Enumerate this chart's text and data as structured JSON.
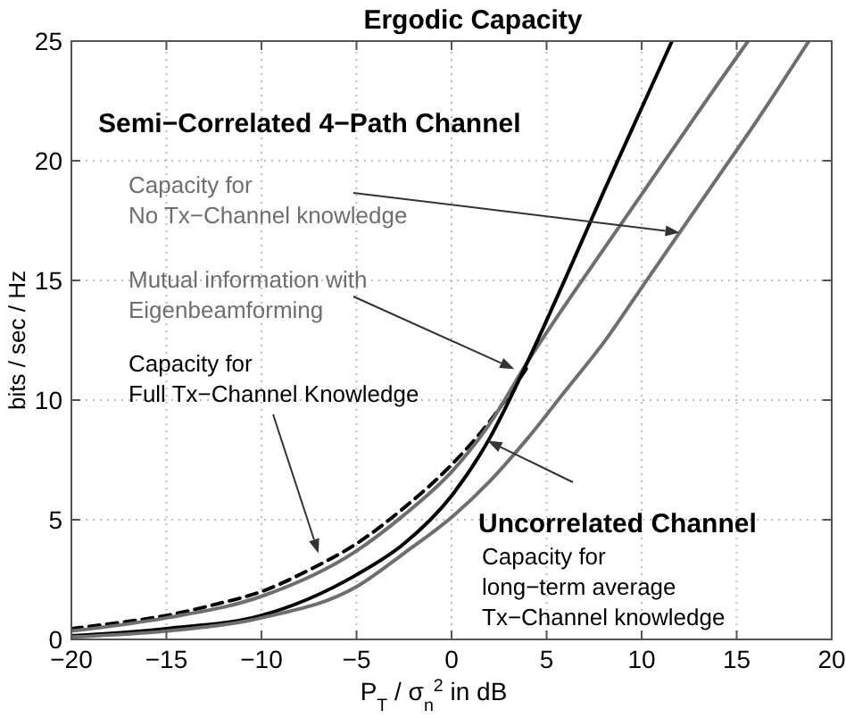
{
  "chart_data": {
    "type": "line",
    "title": "Ergodic Capacity",
    "xlabel": "P$_{T}$ / σ$_{n}$$^{2}$ in dB",
    "ylabel": "bits / sec / Hz",
    "xlim": [
      -20,
      20
    ],
    "ylim": [
      0,
      25
    ],
    "xticks": [
      -20,
      -15,
      -10,
      -5,
      0,
      5,
      10,
      15,
      20
    ],
    "yticks": [
      0,
      5,
      10,
      15,
      20,
      25
    ],
    "grid": true,
    "marker": "none",
    "series": [
      {
        "color": "#000000",
        "line_style": "dashed",
        "x": [
          -20,
          -17.5,
          -15,
          -12.5,
          -10,
          -7.5,
          -5,
          -2.5,
          0,
          2,
          4
        ],
        "values": [
          0.45,
          0.7,
          1.0,
          1.45,
          2.0,
          2.9,
          4.0,
          5.5,
          7.3,
          9.1,
          11.4
        ]
      },
      {
        "color": "#6e6e6e",
        "x": [
          -20,
          -15,
          -10,
          -5,
          -2.5,
          0,
          2,
          4,
          6,
          8,
          10,
          12,
          14,
          15.6
        ],
        "values": [
          0.35,
          0.9,
          1.8,
          3.7,
          5.2,
          7.0,
          9.0,
          11.6,
          14.0,
          16.3,
          18.6,
          20.9,
          23.2,
          25
        ]
      },
      {
        "color": "#000000",
        "x": [
          -20,
          -15,
          -10,
          -5,
          -2.5,
          0,
          2,
          4,
          6,
          8,
          10,
          11.6
        ],
        "values": [
          0.15,
          0.45,
          1.0,
          2.7,
          4.0,
          6.0,
          8.4,
          11.6,
          15.1,
          18.7,
          22.2,
          25
        ]
      },
      {
        "color": "#6e6e6e",
        "x": [
          -20,
          -15,
          -10,
          -5,
          -2.5,
          0,
          2,
          4,
          6,
          8,
          10,
          12,
          14,
          16,
          18.8
        ],
        "values": [
          0.1,
          0.35,
          0.9,
          2.2,
          3.6,
          5.1,
          6.6,
          8.4,
          10.4,
          12.4,
          14.7,
          17.0,
          19.3,
          21.6,
          25
        ]
      }
    ],
    "annotations": [
      "Semi−Correlated 4−Path Channel",
      {
        "text": "Capacity for\nNo Tx−Channel knowledge",
        "x": 12.0,
        "y": 17.0
      },
      {
        "text": "Mutual information with\nEigenbeamforming",
        "x": 3.3,
        "y": 11.3
      },
      {
        "text": "Capacity for\nFull Tx−Channel Knowledge",
        "x": -7.0,
        "y": 3.6
      },
      {
        "text": "Uncorrelated Channel",
        "x": 1.9,
        "y": 8.3
      },
      "Capacity for\nlong−term average\nTx−Channel knowledge"
    ]
  }
}
